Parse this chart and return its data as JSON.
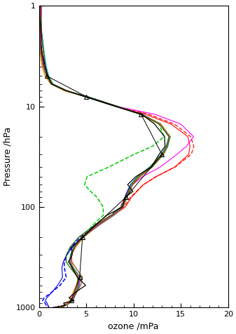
{
  "xlabel": "ozone /mPa",
  "ylabel": "Pressure /hPa",
  "xlim": [
    0,
    20
  ],
  "xticks": [
    0,
    5,
    10,
    15,
    20
  ],
  "background_color": "#ffffff",
  "pressure_levels": [
    1.0,
    1.2,
    1.5,
    2.0,
    2.5,
    3.0,
    4.0,
    5.0,
    6.0,
    7.0,
    8.0,
    10.0,
    12.0,
    15.0,
    20.0,
    25.0,
    30.0,
    40.0,
    50.0,
    60.0,
    70.0,
    80.0,
    100.0,
    120.0,
    150.0,
    200.0,
    250.0,
    300.0,
    350.0,
    400.0,
    500.0,
    600.0,
    700.0,
    800.0,
    850.0,
    900.0,
    950.0,
    1000.0
  ],
  "base_ozone": [
    0.08,
    0.1,
    0.13,
    0.18,
    0.25,
    0.35,
    0.55,
    0.85,
    1.4,
    2.8,
    5.0,
    8.2,
    10.8,
    12.8,
    13.8,
    13.5,
    13.0,
    11.8,
    10.5,
    9.8,
    9.5,
    9.2,
    8.8,
    7.8,
    6.2,
    4.6,
    3.8,
    3.4,
    3.3,
    3.6,
    4.3,
    4.2,
    3.9,
    3.6,
    3.4,
    3.1,
    2.7,
    2.2
  ],
  "sonde_noise": [
    0.02,
    0.02,
    0.03,
    0.04,
    0.05,
    0.06,
    0.08,
    0.12,
    0.2,
    0.3,
    0.4,
    0.3,
    0.3,
    0.3,
    0.3,
    0.3,
    0.3,
    0.3,
    0.3,
    0.3,
    0.3,
    0.3,
    0.4,
    0.4,
    0.4,
    0.3,
    0.3,
    0.3,
    0.3,
    0.3,
    0.4,
    0.4,
    0.4,
    0.4,
    0.4,
    0.4,
    0.4,
    0.4
  ],
  "tri_pressures": [
    5.0,
    8.0,
    12.0,
    30.0,
    80.0,
    200.0,
    500.0,
    850.0
  ],
  "tri_ozone": [
    0.85,
    5.0,
    10.8,
    13.0,
    9.2,
    4.6,
    4.3,
    3.4
  ],
  "magenta_boost": [
    0,
    0,
    0,
    0,
    0,
    0,
    0,
    0,
    0,
    0,
    0,
    0,
    1.5,
    2.2,
    2.5,
    2.0,
    1.5,
    1.0,
    0.5,
    0.2,
    0,
    0,
    0,
    0,
    0,
    0,
    0,
    0,
    0,
    0,
    0,
    0,
    0,
    0,
    0,
    0,
    0,
    0
  ],
  "red_boost": [
    0,
    0,
    0,
    0,
    0,
    0,
    0,
    0,
    0,
    0,
    0,
    0,
    0.5,
    1.2,
    2.0,
    2.5,
    2.8,
    2.5,
    1.8,
    1.2,
    0.8,
    0.5,
    0.2,
    0,
    0,
    0,
    0,
    0,
    0,
    0,
    0,
    0,
    0,
    0,
    0,
    0,
    0,
    0
  ],
  "red_dash_boost": [
    0,
    0,
    0,
    0,
    0,
    0,
    0,
    0,
    0,
    0,
    0,
    0,
    0.8,
    1.5,
    2.2,
    2.8,
    3.0,
    2.5,
    1.8,
    1.2,
    0.8,
    0.5,
    0.2,
    0,
    0,
    0,
    0,
    0,
    0,
    0,
    0,
    0,
    0,
    0,
    0,
    0,
    0,
    0
  ],
  "green_dash_sub": [
    0,
    0,
    0,
    0,
    0,
    0,
    0,
    0,
    0,
    0,
    0,
    0,
    0,
    0,
    0.5,
    1.5,
    3.0,
    4.5,
    5.5,
    5.0,
    4.0,
    3.0,
    2.0,
    1.0,
    0.5,
    0,
    0,
    0,
    0,
    0,
    0,
    0,
    0,
    0,
    0,
    0,
    0,
    0
  ],
  "blue_dash_sub": [
    0,
    0,
    0,
    0,
    0,
    0,
    0,
    0,
    0,
    0,
    0,
    0,
    0,
    0,
    0,
    0,
    0,
    0,
    0,
    0,
    0,
    0,
    0,
    0,
    0,
    0.2,
    0.4,
    0.5,
    0.7,
    1.0,
    1.5,
    2.0,
    2.5,
    3.0,
    3.0,
    2.5,
    2.0,
    1.5
  ],
  "blue_sub": [
    0,
    0,
    0,
    0,
    0,
    0,
    0,
    0,
    0,
    0,
    0,
    0,
    0,
    0,
    0,
    0,
    0,
    0,
    0,
    0,
    0,
    0,
    0,
    0,
    0,
    0.2,
    0.4,
    0.6,
    0.8,
    1.2,
    1.8,
    2.2,
    2.5,
    2.8,
    2.8,
    2.3,
    1.8,
    1.2
  ]
}
